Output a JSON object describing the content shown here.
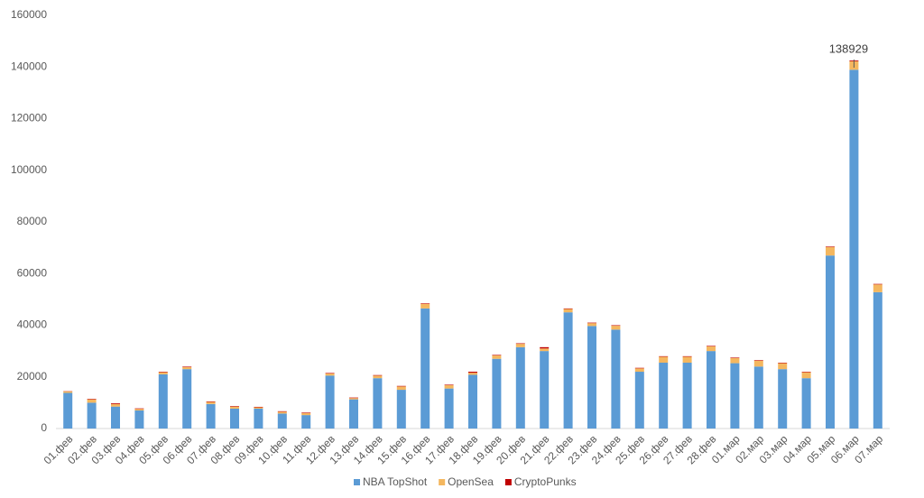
{
  "chart_data": {
    "type": "stacked-bar",
    "categories": [
      "01.фев",
      "02.фев",
      "03.фев",
      "04.фев",
      "05.фев",
      "06.фев",
      "07.фев",
      "08.фев",
      "09.фев",
      "10.фев",
      "11.фев",
      "12.фев",
      "13.фев",
      "14.фев",
      "15.фев",
      "16.фев",
      "17.фев",
      "18.фев",
      "19.фев",
      "20.фев",
      "21.фев",
      "22.фев",
      "23.фев",
      "24.фев",
      "25.фев",
      "26.фев",
      "27.фев",
      "28.фев",
      "01.мар",
      "02.мар",
      "03.мар",
      "04.мар",
      "05.мар",
      "06.мар",
      "07.мар"
    ],
    "series": [
      {
        "name": "NBA TopShot",
        "color": "#5b9bd5",
        "values": [
          13800,
          10000,
          8500,
          7000,
          21000,
          23000,
          9500,
          7700,
          7700,
          5800,
          5200,
          20500,
          11300,
          19500,
          15000,
          46500,
          15500,
          20800,
          27000,
          31500,
          30000,
          45000,
          39700,
          38300,
          22000,
          25500,
          25500,
          30000,
          25300,
          24000,
          23000,
          19500,
          67000,
          138929,
          52800
        ]
      },
      {
        "name": "OpenSea",
        "color": "#f4b75f",
        "values": [
          600,
          1300,
          1000,
          600,
          800,
          800,
          800,
          800,
          500,
          700,
          800,
          800,
          500,
          1000,
          1300,
          1800,
          1300,
          800,
          1300,
          1300,
          1000,
          1300,
          1100,
          1500,
          1300,
          2300,
          2300,
          1800,
          2000,
          2300,
          2300,
          2300,
          3300,
          3300,
          3000
        ]
      },
      {
        "name": "CryptoPunks",
        "color": "#c00000",
        "values": [
          100,
          200,
          300,
          200,
          200,
          200,
          200,
          200,
          200,
          200,
          200,
          200,
          200,
          200,
          200,
          200,
          200,
          400,
          200,
          200,
          500,
          200,
          200,
          200,
          200,
          200,
          200,
          200,
          200,
          200,
          200,
          200,
          200,
          300,
          200
        ]
      }
    ],
    "ylim": [
      0,
      160000
    ],
    "yticks": [
      0,
      20000,
      40000,
      60000,
      80000,
      100000,
      120000,
      140000,
      160000
    ],
    "grid": false,
    "legend": "bottom",
    "labeled_point": [
      0,
      33
    ]
  }
}
